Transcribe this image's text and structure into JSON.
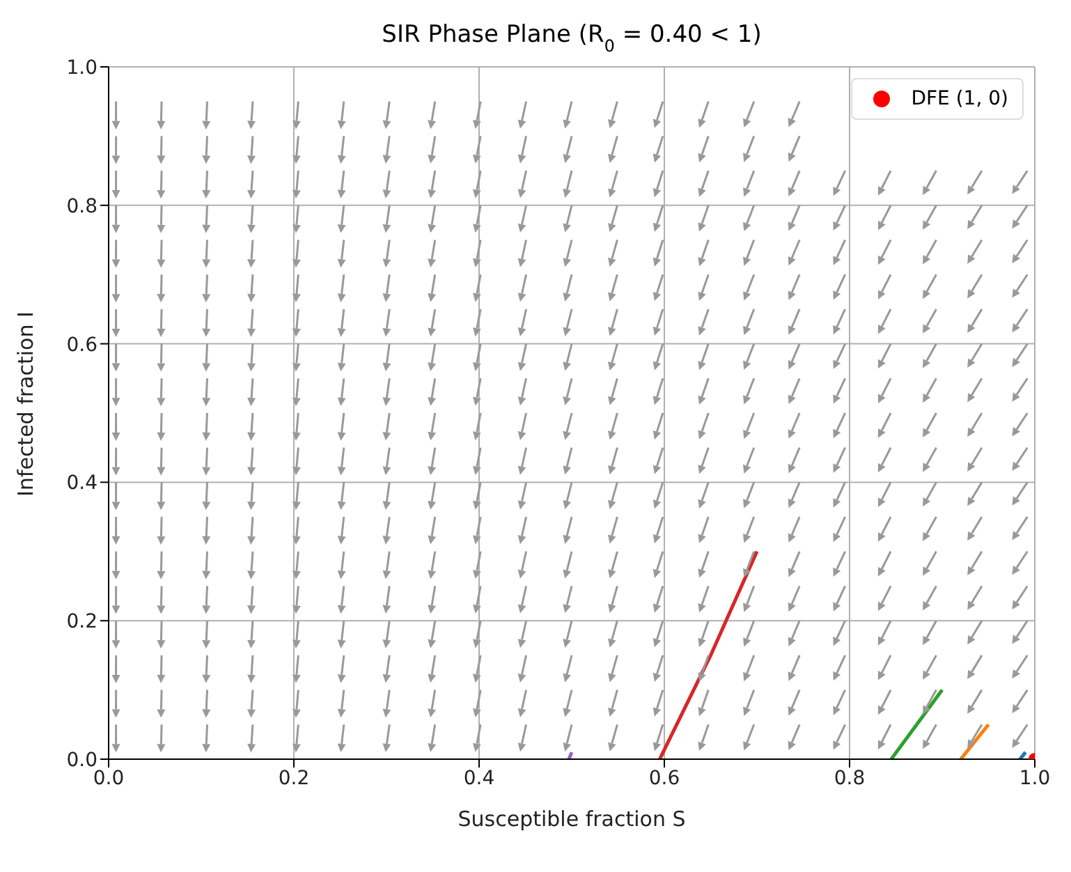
{
  "chart_data": {
    "type": "line",
    "title": "SIR Phase Plane (R$_{0}$ = 0.40 < 1)",
    "xlabel": "Susceptible fraction S",
    "ylabel": "Infected fraction I",
    "series": [
      {
        "color": "#d62728",
        "x": [
          0.7,
          0.65,
          0.595
        ],
        "values": [
          0.3,
          0.15,
          0
        ]
      },
      {
        "color": "#2ca02c",
        "x": [
          0.9,
          0.845
        ],
        "values": [
          0.1,
          0
        ]
      },
      {
        "color": "#ff7f0e",
        "x": [
          0.95,
          0.92
        ],
        "values": [
          0.05,
          0
        ]
      },
      {
        "color": "#1f77b4",
        "x": [
          0.99,
          0.984
        ],
        "values": [
          0.01,
          0
        ]
      },
      {
        "color": "#9467bd",
        "x": [
          0.5,
          0.497
        ],
        "values": [
          0.01,
          0
        ]
      },
      {
        "type": "scatter",
        "name": "DFE (1, 0)",
        "color": "#ff0000",
        "x": [
          1
        ],
        "values": [
          0
        ]
      }
    ],
    "xlim": [
      0,
      1
    ],
    "ylim": [
      0,
      1
    ],
    "xticks": [
      {
        "value": 0,
        "label": "0.0"
      },
      {
        "value": 0.2,
        "label": "0.2"
      },
      {
        "value": 0.4,
        "label": "0.4"
      },
      {
        "value": 0.6,
        "label": "0.6"
      },
      {
        "value": 0.8,
        "label": "0.8"
      },
      {
        "value": 1,
        "label": "1.0"
      }
    ],
    "yticks": [
      {
        "value": 0,
        "label": "0.0"
      },
      {
        "value": 0.2,
        "label": "0.2"
      },
      {
        "value": 0.4,
        "label": "0.4"
      },
      {
        "value": 0.6,
        "label": "0.6"
      },
      {
        "value": 0.8,
        "label": "0.8"
      },
      {
        "value": 1,
        "label": "1.0"
      }
    ],
    "grid": true,
    "legend": "top right",
    "line_style": "solid"
  }
}
